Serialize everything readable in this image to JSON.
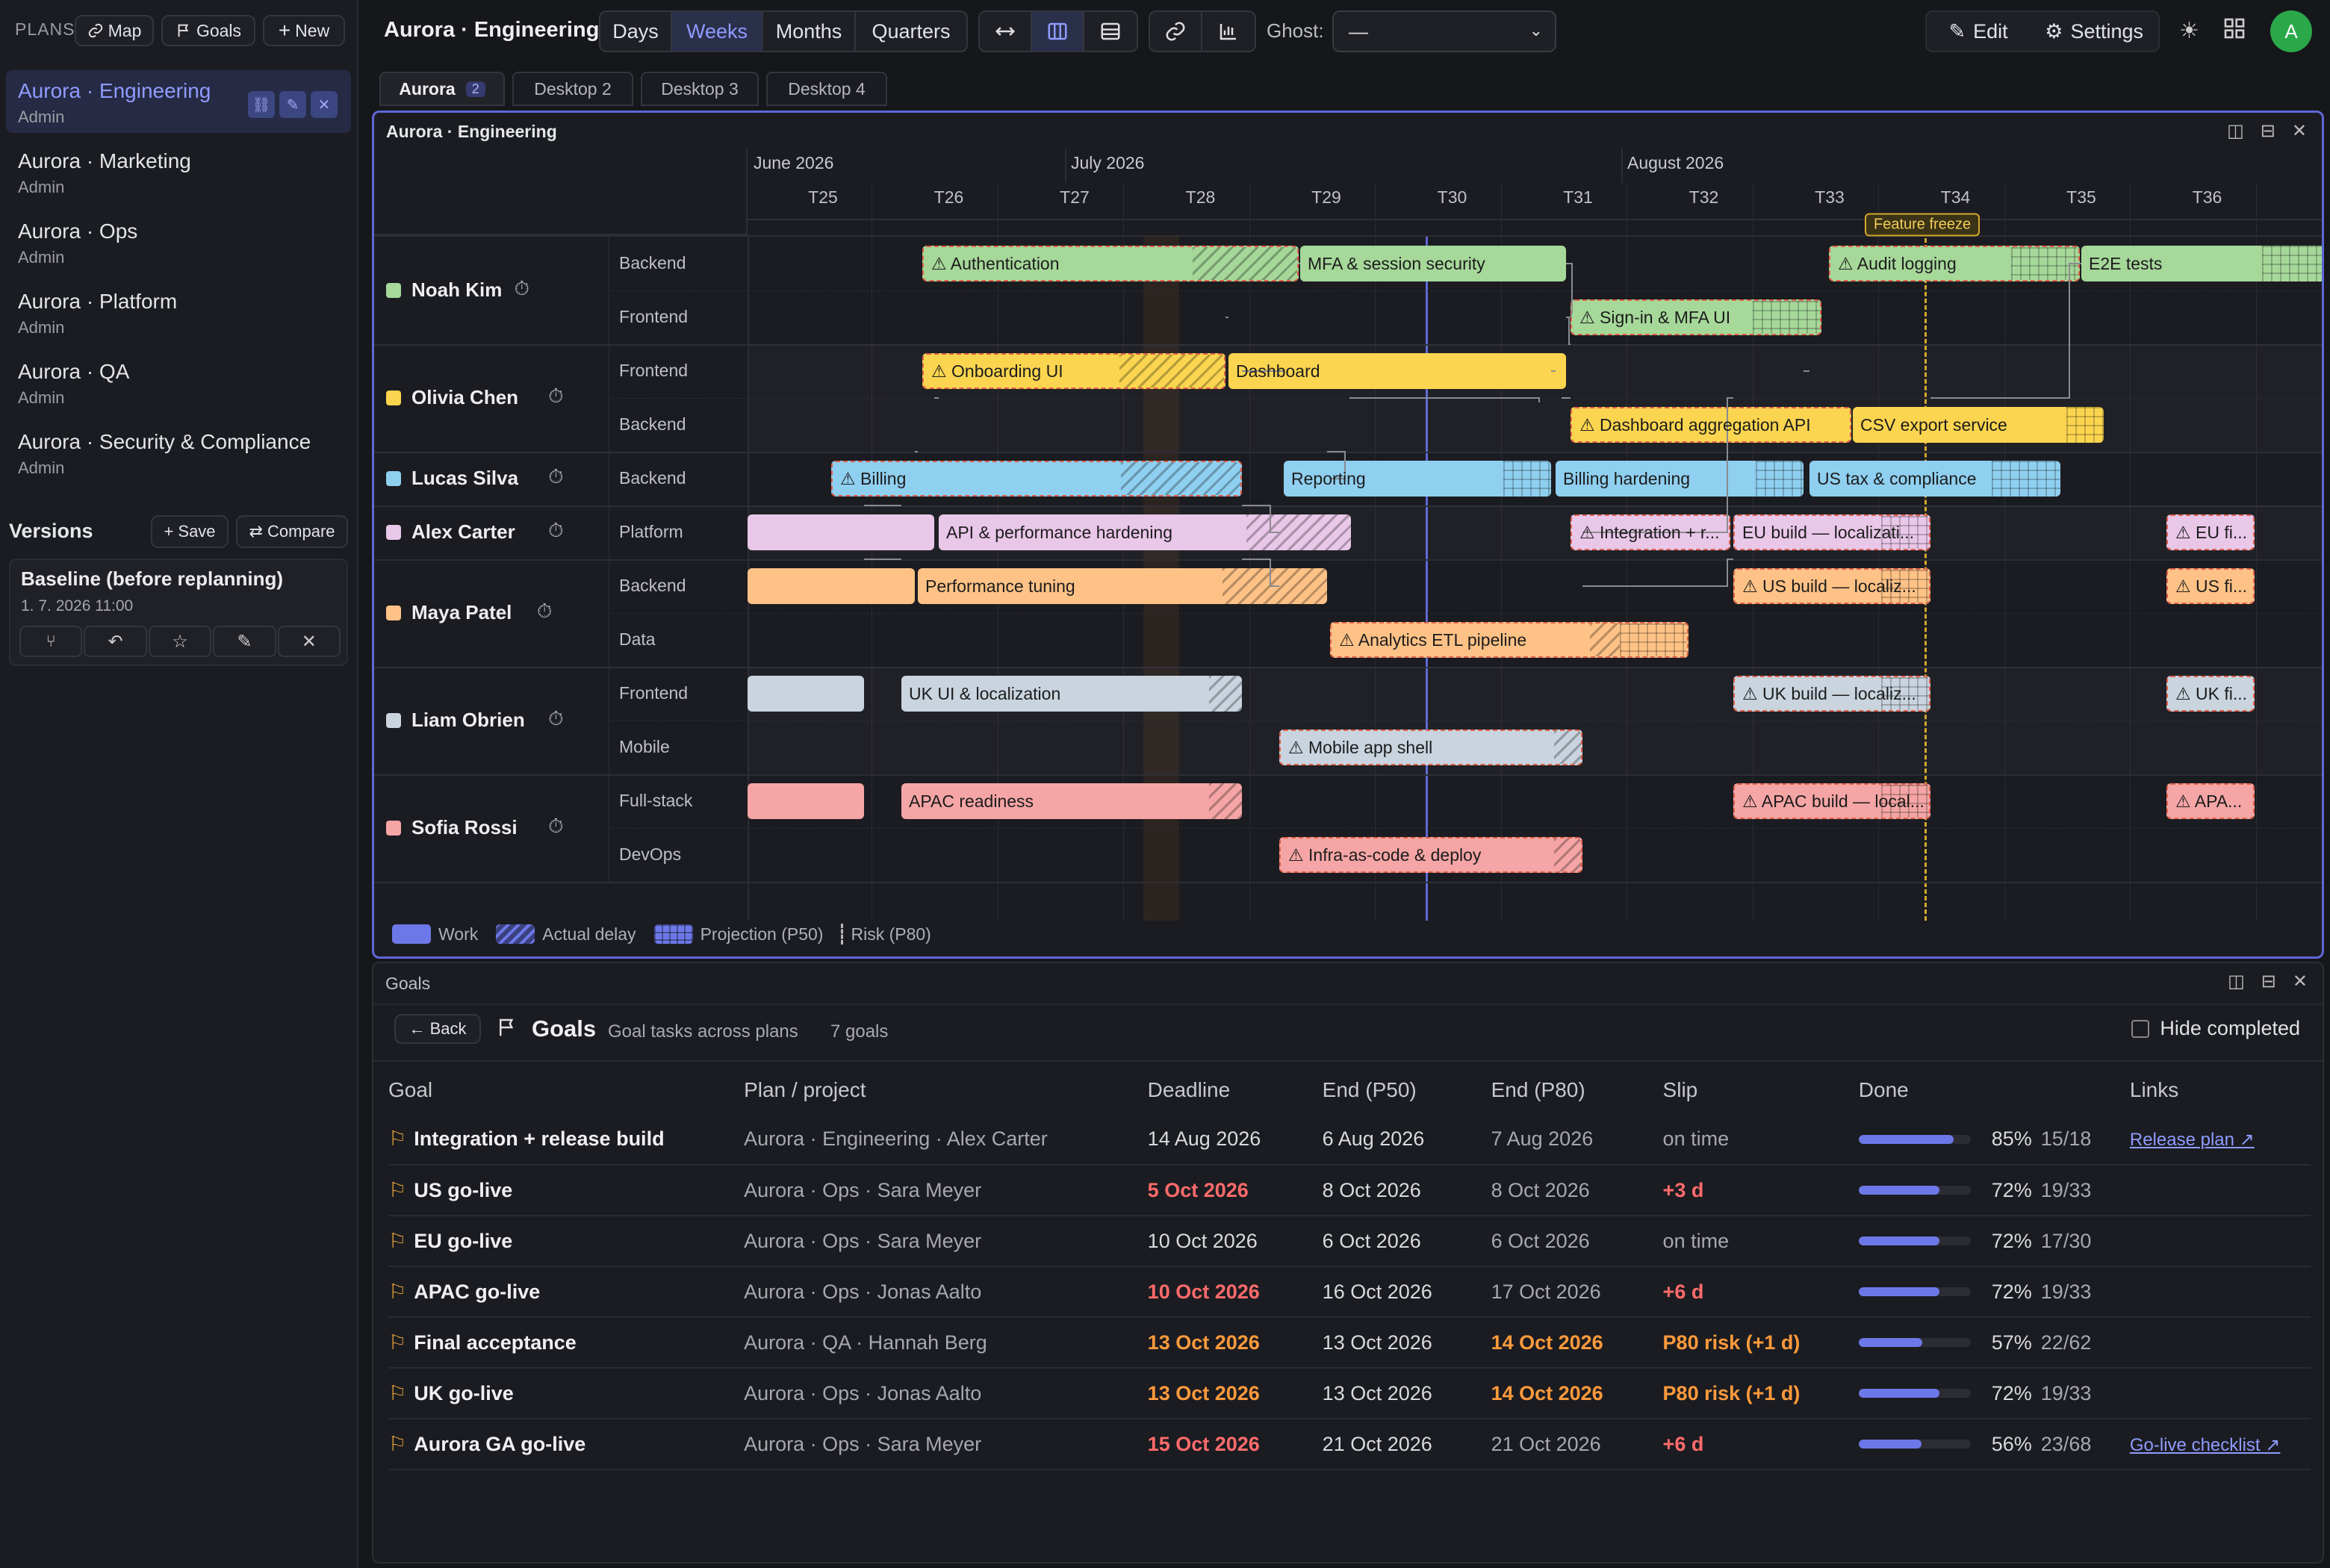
{
  "sidebar": {
    "plans_label": "PLANS",
    "map_btn": "Map",
    "goals_btn": "Goals",
    "new_btn": "New",
    "plans": [
      {
        "name": "Aurora · Engineering",
        "role": "Admin",
        "active": true
      },
      {
        "name": "Aurora · Marketing",
        "role": "Admin"
      },
      {
        "name": "Aurora · Ops",
        "role": "Admin"
      },
      {
        "name": "Aurora · Platform",
        "role": "Admin"
      },
      {
        "name": "Aurora · QA",
        "role": "Admin"
      },
      {
        "name": "Aurora · Security & Compliance",
        "role": "Admin"
      }
    ],
    "versions_label": "Versions",
    "save_btn": "+ Save",
    "compare_btn": "⇄ Compare",
    "version": {
      "name": "Baseline (before replanning)",
      "date": "1. 7. 2026 11:00"
    }
  },
  "topbar": {
    "title": "Aurora · Engineering",
    "scales": [
      "Days",
      "Weeks",
      "Months",
      "Quarters"
    ],
    "active_scale": "Weeks",
    "ghost_label": "Ghost:",
    "ghost_value": "—",
    "edit_btn": "Edit",
    "settings_btn": "Settings",
    "avatar": "A"
  },
  "tabs": [
    {
      "label": "Aurora",
      "badge": "2"
    },
    {
      "label": "Desktop 2"
    },
    {
      "label": "Desktop 3"
    },
    {
      "label": "Desktop 4"
    }
  ],
  "gantt": {
    "title": "Aurora · Engineering",
    "months": [
      "June 2026",
      "July 2026",
      "August 2026"
    ],
    "weeks": [
      "T25",
      "T26",
      "T27",
      "T28",
      "T29",
      "T30",
      "T31",
      "T32",
      "T33",
      "T34",
      "T35",
      "T36"
    ],
    "freeze_label": "Feature freeze",
    "people": [
      {
        "name": "Noah Kim",
        "color": "#a6d89a",
        "lanes": [
          "Backend",
          "Frontend"
        ]
      },
      {
        "name": "Olivia Chen",
        "color": "#fbd54f",
        "lanes": [
          "Frontend",
          "Backend"
        ]
      },
      {
        "name": "Lucas Silva",
        "color": "#8fcff0",
        "lanes": [
          "Backend"
        ]
      },
      {
        "name": "Alex Carter",
        "color": "#e9c7e9",
        "lanes": [
          "Platform"
        ]
      },
      {
        "name": "Maya Patel",
        "color": "#ffc286",
        "lanes": [
          "Backend",
          "Data"
        ]
      },
      {
        "name": "Liam Obrien",
        "color": "#c9d4df",
        "lanes": [
          "Frontend",
          "Mobile"
        ]
      },
      {
        "name": "Sofia Rossi",
        "color": "#f5a5a5",
        "lanes": [
          "Full-stack",
          "DevOps"
        ]
      }
    ],
    "tasks": [
      "⚠ Authentication",
      "MFA & session security",
      "⚠ Audit logging",
      "E2E tests",
      "⚠ Sign-in & MFA UI",
      "⚠ Onboarding UI",
      "Dashboard",
      "⚠ Dashboard aggregation API",
      "CSV export service",
      "⚠ Billing",
      "Reporting",
      "Billing hardening",
      "US tax & compliance",
      "API & performance hardening",
      "⚠ Integration + r...",
      "EU build — localizati...",
      "⚠ EU fi...",
      "Performance tuning",
      "⚠ US build — localiz...",
      "⚠ US fi...",
      "⚠ Analytics ETL pipeline",
      "UK UI & localization",
      "⚠ UK build — localiz...",
      "⚠ UK fi...",
      "⚠ Mobile app shell",
      "APAC readiness",
      "⚠ APAC build — local...",
      "⚠ APA...",
      "⚠ Infra-as-code & deploy"
    ],
    "legend": [
      "Work",
      "Actual delay",
      "Projection (P50)",
      "Risk (P80)"
    ]
  },
  "goals": {
    "panel_title": "Goals",
    "back_btn": "← Back",
    "title": "Goals",
    "subtitle": "Goal tasks across plans",
    "count": "7 goals",
    "hide_completed": "Hide completed",
    "columns": [
      "Goal",
      "Plan / project",
      "Deadline",
      "End (P50)",
      "End (P80)",
      "Slip",
      "Done",
      "Links"
    ],
    "rows": [
      {
        "goal": "Integration + release build",
        "plan": "Aurora · Engineering · Alex Carter",
        "deadline": "14 Aug 2026",
        "p50": "6 Aug 2026",
        "p80": "7 Aug 2026",
        "slip": "on time",
        "pct": "85%",
        "frac": "15/18",
        "done": 0.85,
        "link": "Release plan ↗",
        "dl": "",
        "p80s": "",
        "slips": "muted"
      },
      {
        "goal": "US go-live",
        "plan": "Aurora · Ops · Sara Meyer",
        "deadline": "5 Oct 2026",
        "p50": "8 Oct 2026",
        "p80": "8 Oct 2026",
        "slip": "+3 d",
        "pct": "72%",
        "frac": "19/33",
        "done": 0.72,
        "link": "",
        "dl": "red",
        "p80s": "",
        "slips": "red"
      },
      {
        "goal": "EU go-live",
        "plan": "Aurora · Ops · Sara Meyer",
        "deadline": "10 Oct 2026",
        "p50": "6 Oct 2026",
        "p80": "6 Oct 2026",
        "slip": "on time",
        "pct": "72%",
        "frac": "17/30",
        "done": 0.72,
        "link": "",
        "dl": "",
        "p80s": "",
        "slips": "muted"
      },
      {
        "goal": "APAC go-live",
        "plan": "Aurora · Ops · Jonas Aalto",
        "deadline": "10 Oct 2026",
        "p50": "16 Oct 2026",
        "p80": "17 Oct 2026",
        "slip": "+6 d",
        "pct": "72%",
        "frac": "19/33",
        "done": 0.72,
        "link": "",
        "dl": "red",
        "p80s": "",
        "slips": "red"
      },
      {
        "goal": "Final acceptance",
        "plan": "Aurora · QA · Hannah Berg",
        "deadline": "13 Oct 2026",
        "p50": "13 Oct 2026",
        "p80": "14 Oct 2026",
        "slip": "P80 risk (+1 d)",
        "pct": "57%",
        "frac": "22/62",
        "done": 0.57,
        "link": "",
        "dl": "orange",
        "p80s": "orange",
        "slips": "orange"
      },
      {
        "goal": "UK go-live",
        "plan": "Aurora · Ops · Jonas Aalto",
        "deadline": "13 Oct 2026",
        "p50": "13 Oct 2026",
        "p80": "14 Oct 2026",
        "slip": "P80 risk (+1 d)",
        "pct": "72%",
        "frac": "19/33",
        "done": 0.72,
        "link": "",
        "dl": "orange",
        "p80s": "orange",
        "slips": "orange"
      },
      {
        "goal": "Aurora GA go-live",
        "plan": "Aurora · Ops · Sara Meyer",
        "deadline": "15 Oct 2026",
        "p50": "21 Oct 2026",
        "p80": "21 Oct 2026",
        "slip": "+6 d",
        "pct": "56%",
        "frac": "23/68",
        "done": 0.56,
        "link": "Go-live checklist ↗",
        "dl": "red",
        "p80s": "",
        "slips": "red"
      }
    ]
  }
}
